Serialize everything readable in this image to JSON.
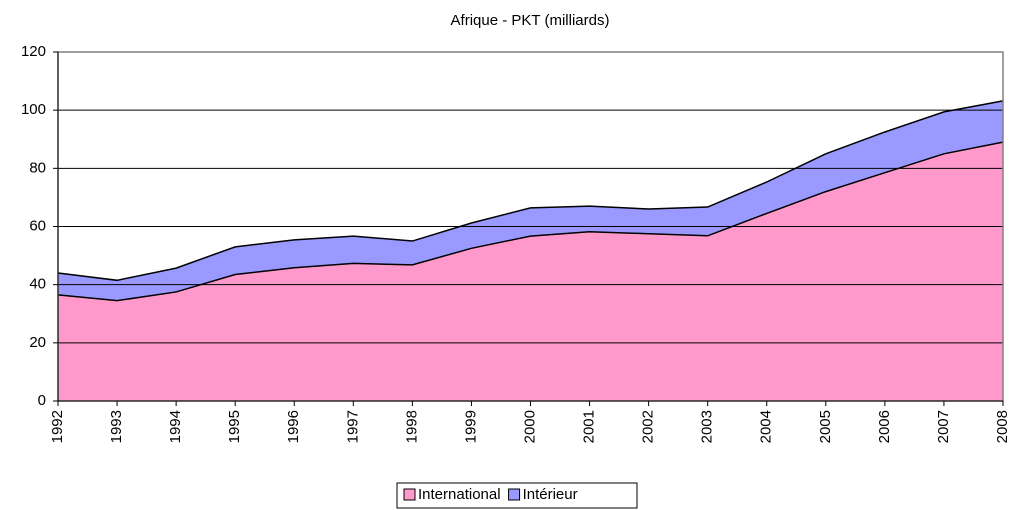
{
  "chart_data": {
    "type": "stacked_area",
    "title": "Afrique - PKT (milliards)",
    "categories": [
      "1992",
      "1993",
      "1994",
      "1995",
      "1996",
      "1997",
      "1998",
      "1999",
      "2000",
      "2001",
      "2002",
      "2003",
      "2004",
      "2005",
      "2006",
      "2007",
      "2008"
    ],
    "series": [
      {
        "name": "International",
        "color": "#ff99cc",
        "values": [
          36.5,
          34.5,
          37.5,
          43.5,
          45.8,
          47.3,
          46.8,
          52.5,
          56.7,
          58.2,
          57.5,
          56.8,
          64.5,
          72,
          78.5,
          85,
          89
        ]
      },
      {
        "name": "Intérieur",
        "color": "#9999ff",
        "values": [
          7.5,
          7,
          8.2,
          9.5,
          9.6,
          9.4,
          8.2,
          8.7,
          9.7,
          8.8,
          8.5,
          9.9,
          10.8,
          13,
          14,
          14.4,
          14.2
        ]
      }
    ],
    "ylim": [
      0,
      120
    ],
    "yticks": [
      0,
      20,
      40,
      60,
      80,
      100,
      120
    ],
    "grid": true,
    "legend": "bottom"
  }
}
